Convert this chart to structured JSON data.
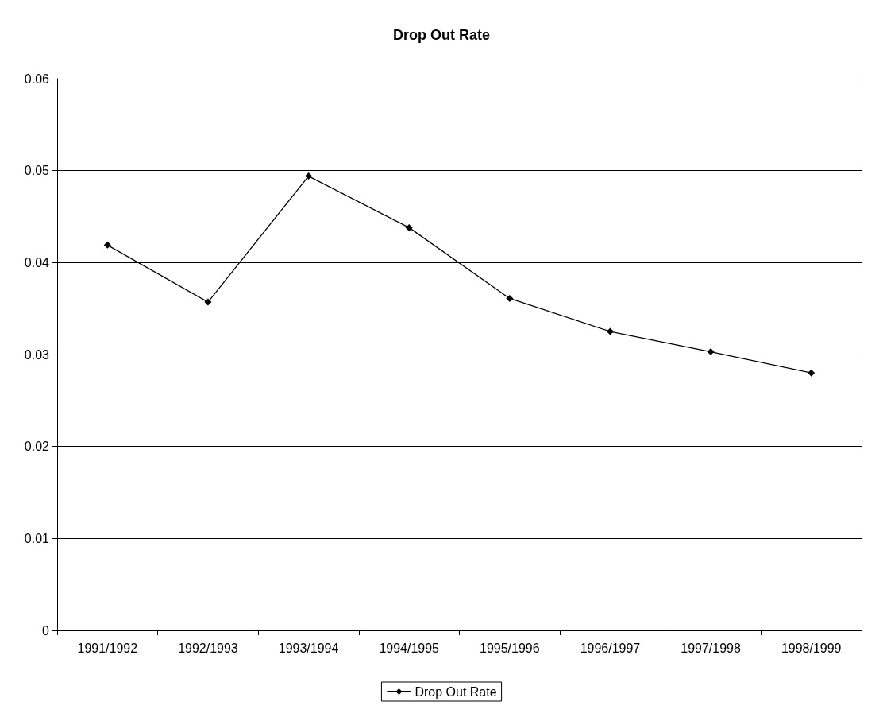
{
  "chart_data": {
    "type": "line",
    "title": "Drop Out Rate",
    "categories": [
      "1991/1992",
      "1992/1993",
      "1993/1994",
      "1994/1995",
      "1995/1996",
      "1996/1997",
      "1997/1998",
      "1998/1999"
    ],
    "series": [
      {
        "name": "Drop Out Rate",
        "color": "#000000",
        "values": [
          0.0419,
          0.0357,
          0.0494,
          0.0438,
          0.0361,
          0.0325,
          0.0303,
          0.028
        ]
      }
    ],
    "ylim": [
      0,
      0.06
    ],
    "yticks": [
      0,
      0.01,
      0.02,
      0.03,
      0.04,
      0.05,
      0.06
    ],
    "grid": "y",
    "legend": "bottom",
    "marker": "diamond",
    "line_style": "solid"
  }
}
